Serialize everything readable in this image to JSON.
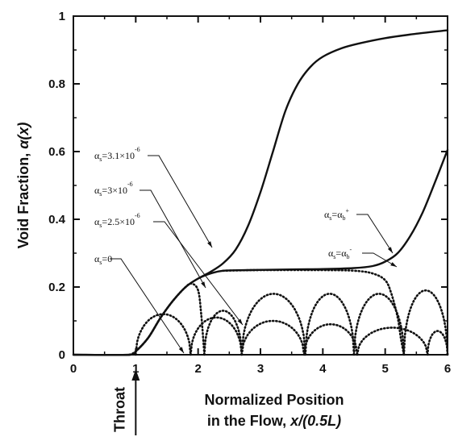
{
  "chart_data": {
    "type": "line",
    "xlabel_line1": "Normalized Position",
    "xlabel_line2": "in the Flow, ",
    "xlabel_math": "x/(0.5L)",
    "ylabel_text": "Void Fraction, ",
    "ylabel_math": "α(x)",
    "throat_label": "Throat",
    "throat_x": 1,
    "xlim": [
      0,
      6
    ],
    "ylim": [
      0,
      1
    ],
    "xticks": [
      "0",
      "1",
      "2",
      "3",
      "4",
      "5",
      "6"
    ],
    "yticks": [
      "0",
      "0.2",
      "0.4",
      "0.6",
      "0.8",
      "1"
    ],
    "grid": false,
    "series": [
      {
        "label_base": "α",
        "label_sub": "s",
        "label_eq": "=3.1×10",
        "label_sup": "-6",
        "style": "solid",
        "x": [
          0,
          0.9,
          1.0,
          1.2,
          1.4,
          1.6,
          1.8,
          2.0,
          2.2,
          2.4,
          2.6,
          2.8,
          3.0,
          3.2,
          3.4,
          3.6,
          3.8,
          4.0,
          4.3,
          4.6,
          5.0,
          5.5,
          6.0
        ],
        "y": [
          0,
          0,
          0.01,
          0.05,
          0.11,
          0.16,
          0.2,
          0.225,
          0.245,
          0.27,
          0.31,
          0.38,
          0.48,
          0.6,
          0.72,
          0.8,
          0.85,
          0.88,
          0.905,
          0.92,
          0.935,
          0.948,
          0.958
        ]
      },
      {
        "label_base": "α",
        "label_sub": "s",
        "label_eq": "=α",
        "label_sub2": "b",
        "label_sup": "+",
        "style": "solid",
        "x": [
          0,
          0.9,
          1.0,
          1.2,
          1.4,
          1.6,
          1.8,
          2.0,
          2.2,
          2.4,
          2.8,
          3.5,
          4.0,
          4.5,
          4.8,
          5.0,
          5.2,
          5.4,
          5.6,
          5.8,
          6.0
        ],
        "y": [
          0,
          0,
          0.01,
          0.05,
          0.11,
          0.16,
          0.2,
          0.225,
          0.24,
          0.248,
          0.25,
          0.252,
          0.253,
          0.256,
          0.262,
          0.275,
          0.3,
          0.35,
          0.42,
          0.51,
          0.605
        ]
      },
      {
        "label_base": "α",
        "label_sub": "s",
        "label_eq": "=α",
        "label_sub2": "b",
        "label_sup": "-",
        "style": "dotted",
        "x": [
          2.4,
          3.0,
          4.0,
          4.5,
          4.8,
          5.0,
          5.1,
          5.2,
          5.25,
          5.3
        ],
        "y": [
          0.248,
          0.25,
          0.25,
          0.248,
          0.24,
          0.22,
          0.18,
          0.11,
          0.05,
          0.0
        ]
      },
      {
        "label_base": "α",
        "label_sub": "s",
        "label_eq": "=3×10",
        "label_sup": "-6",
        "style": "dotted",
        "arches": [
          [
            2.1,
            2.7,
            0.13
          ],
          [
            2.7,
            3.72,
            0.18
          ],
          [
            3.72,
            4.5,
            0.18
          ],
          [
            4.5,
            5.3,
            0.18
          ],
          [
            5.3,
            6.0,
            0.19
          ]
        ]
      },
      {
        "label_base": "α",
        "label_sub": "s",
        "label_eq": "=2.5×10",
        "label_sup": "-6",
        "style": "dotted",
        "x": [
          0.9,
          1.0,
          1.2,
          1.4,
          1.6,
          1.8,
          1.9,
          2.0,
          2.05,
          2.1
        ],
        "y": [
          0,
          0.01,
          0.05,
          0.11,
          0.16,
          0.2,
          0.21,
          0.19,
          0.12,
          0.0
        ]
      },
      {
        "label_base": "α",
        "label_sub": "s",
        "label_eq": "=0",
        "style": "dotted",
        "arches": [
          [
            1.0,
            1.88,
            0.12
          ],
          [
            1.88,
            2.7,
            0.11
          ],
          [
            2.7,
            3.7,
            0.1
          ],
          [
            3.7,
            4.55,
            0.09
          ],
          [
            4.55,
            5.68,
            0.08
          ],
          [
            5.68,
            6.0,
            0.07
          ]
        ]
      }
    ]
  }
}
